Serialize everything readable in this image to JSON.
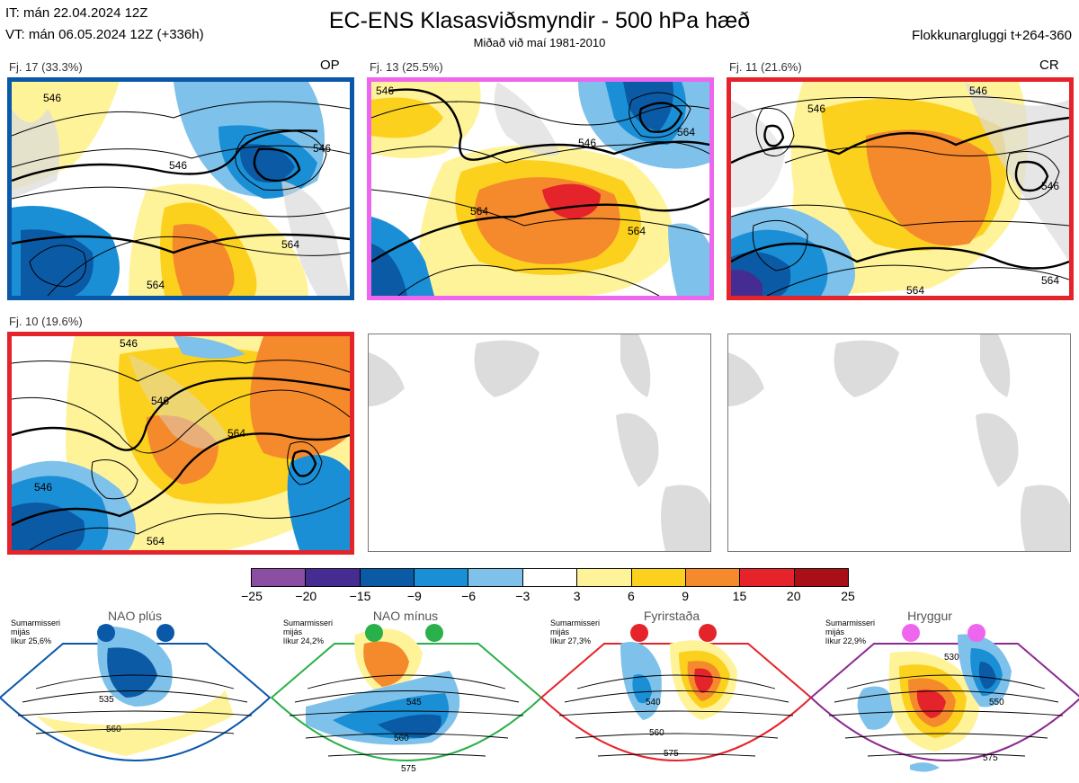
{
  "header": {
    "it": "IT: mán 22.04.2024 12Z",
    "vt": "VT: mán 06.05.2024 12Z  (+336h)",
    "title": "EC-ENS Klasasviðsmyndir - 500 hPa hæð",
    "subtitle": "Miðað við maí 1981-2010",
    "window": "Flokkunargluggi t+264-360"
  },
  "panels": [
    {
      "label": "Fj. 17 (33.3%)",
      "tag": "OP",
      "frame_color": "#0a58a8",
      "contours": [
        "546",
        "546",
        "564",
        "564",
        "546"
      ]
    },
    {
      "label": "Fj. 13 (25.5%)",
      "tag": "",
      "frame_color": "#ee66ee",
      "contours": [
        "546",
        "564",
        "546",
        "564",
        "564"
      ]
    },
    {
      "label": "Fj. 11 (21.6%)",
      "tag": "CR",
      "frame_color": "#e5232a",
      "contours": [
        "546",
        "546",
        "564",
        "564",
        "546"
      ]
    },
    {
      "label": "Fj. 10 (19.6%)",
      "tag": "",
      "frame_color": "#e5232a",
      "contours": [
        "546",
        "546",
        "564",
        "546",
        "564"
      ]
    }
  ],
  "colorbar": {
    "ticks": [
      "−25",
      "−20",
      "−15",
      "−9",
      "−6",
      "−3",
      "3",
      "6",
      "9",
      "15",
      "20",
      "25"
    ],
    "colors": [
      "#8a4ea3",
      "#452c92",
      "#0b5aa5",
      "#1a8fd6",
      "#7ec1ea",
      "#ffffff",
      "#fff39a",
      "#fcd11d",
      "#f58a2d",
      "#e5232a",
      "#a80f16"
    ]
  },
  "regimes": [
    {
      "name": "NAO plús",
      "info": [
        "Sumarmisseri",
        "mijás",
        "líkur 25,6%"
      ],
      "color": "#0a58a8",
      "c1": "535",
      "c2": "560"
    },
    {
      "name": "NAO mínus",
      "info": [
        "Sumarmisseri",
        "mijás",
        "líkur 24,2%"
      ],
      "color": "#2ab04a",
      "c1": "545",
      "c2": "560",
      "c3": "575"
    },
    {
      "name": "Fyrirstaða",
      "info": [
        "Sumarmisseri",
        "mijás",
        "líkur 27,3%"
      ],
      "color": "#e5232a",
      "c1": "540",
      "c2": "560",
      "c3": "575"
    },
    {
      "name": "Hryggur",
      "info": [
        "Sumarmisseri",
        "mijás",
        "líkur 22,9%"
      ],
      "color": "#ee66ee",
      "c1": "530",
      "c2": "550",
      "c3": "575"
    }
  ]
}
